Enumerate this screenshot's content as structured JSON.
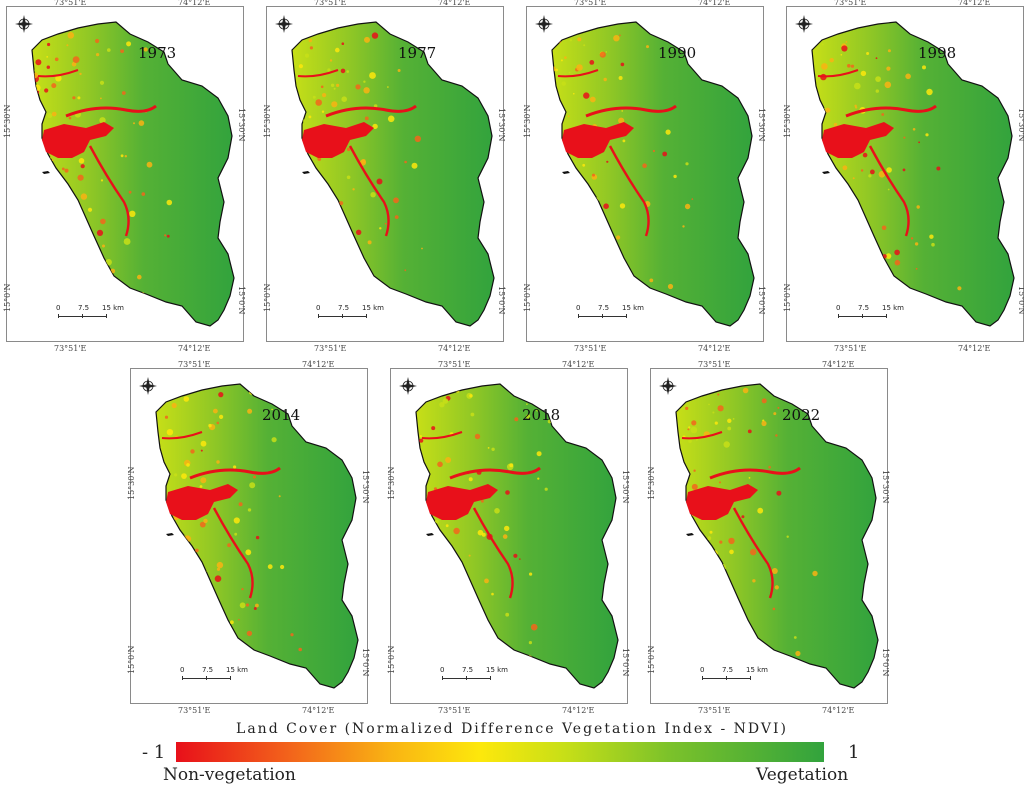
{
  "panels": [
    {
      "year": "1973",
      "lon_left": "73°51'E",
      "lon_right": "74°12'E",
      "lat_upper": "15°30'N",
      "lat_lower": "15°0'N",
      "red_level": 0.55
    },
    {
      "year": "1977",
      "lon_left": "73°51'E",
      "lon_right": "74°12'E",
      "lat_upper": "15°30'N",
      "lat_lower": "15°0'N",
      "red_level": 0.5
    },
    {
      "year": "1990",
      "lon_left": "73°51'E",
      "lon_right": "74°12'E",
      "lat_upper": "15°30'N",
      "lat_lower": "15°0'N",
      "red_level": 0.35
    },
    {
      "year": "1998",
      "lon_left": "73°51'E",
      "lon_right": "74°12'E",
      "lat_upper": "15°30'N",
      "lat_lower": "15°0'N",
      "red_level": 0.45
    },
    {
      "year": "2014",
      "lon_left": "73°51'E",
      "lon_right": "74°12'E",
      "lat_upper": "15°30'N",
      "lat_lower": "15°0'N",
      "red_level": 0.4
    },
    {
      "year": "2018",
      "lon_left": "73°51'E",
      "lon_right": "74°12'E",
      "lat_upper": "15°30'N",
      "lat_lower": "15°0'N",
      "red_level": 0.42
    },
    {
      "year": "2022",
      "lon_left": "73°51'E",
      "lon_right": "74°12'E",
      "lat_upper": "15°30'N",
      "lat_lower": "15°0'N",
      "red_level": 0.3
    }
  ],
  "scale_bar": {
    "zero": "0",
    "mid": "7.5",
    "end": "15 km"
  },
  "legend": {
    "title": "Land Cover (Normalized Difference Vegetation Index - NDVI)",
    "min_label": "- 1",
    "max_label": "1",
    "left_label": "Non-vegetation",
    "right_label": "Vegetation"
  },
  "colors": {
    "water_red": "#e8101a",
    "orange": "#f3661b",
    "yellow": "#fde80c",
    "light_green": "#7cc22a",
    "dark_green": "#32a33d"
  }
}
